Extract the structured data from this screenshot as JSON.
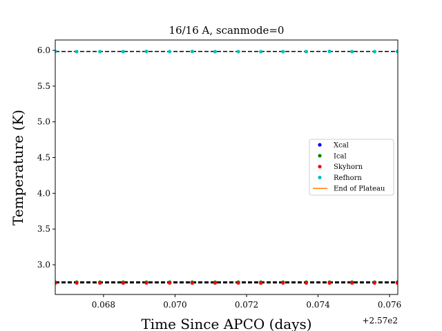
{
  "chart_data": {
    "type": "scatter",
    "title": "16/16 A, scanmode=0",
    "xlabel": "Time Since APCO (days)",
    "ylabel": "Temperature (K)",
    "x_offset_label": "+2.57e2",
    "x_offset": 257,
    "xlim": [
      0.06665,
      0.07623
    ],
    "ylim": [
      2.585,
      6.145
    ],
    "x_ticks": [
      0.068,
      0.07,
      0.072,
      0.074,
      0.076
    ],
    "x_tick_labels": [
      "0.068",
      "0.070",
      "0.072",
      "0.074",
      "0.076"
    ],
    "y_ticks": [
      3.0,
      3.5,
      4.0,
      4.5,
      5.0,
      5.5,
      6.0
    ],
    "y_tick_labels": [
      "3.0",
      "3.5",
      "4.0",
      "4.5",
      "5.0",
      "5.5",
      "6.0"
    ],
    "x": [
      0.06665,
      0.06725,
      0.0679,
      0.06855,
      0.0692,
      0.06985,
      0.07048,
      0.07112,
      0.07177,
      0.0724,
      0.07302,
      0.07367,
      0.07432,
      0.07495,
      0.07558,
      0.07622
    ],
    "series": [
      {
        "name": "Xcal",
        "color": "#0000ff",
        "marker": "dot",
        "values": [
          2.752,
          2.752,
          2.752,
          2.752,
          2.752,
          2.752,
          2.752,
          2.752,
          2.752,
          2.752,
          2.752,
          2.752,
          2.752,
          2.752,
          2.752,
          2.752
        ]
      },
      {
        "name": "Ical",
        "color": "#008000",
        "marker": "dot",
        "values": [
          2.757,
          2.757,
          2.757,
          2.757,
          2.757,
          2.757,
          2.757,
          2.757,
          2.757,
          2.757,
          2.757,
          2.757,
          2.757,
          2.757,
          2.757,
          2.757
        ]
      },
      {
        "name": "Skyhorn",
        "color": "#ff0000",
        "marker": "dot",
        "values": [
          2.745,
          2.746,
          2.746,
          2.745,
          2.746,
          2.746,
          2.745,
          2.746,
          2.746,
          2.745,
          2.746,
          2.746,
          2.745,
          2.746,
          2.746,
          2.745
        ]
      },
      {
        "name": "Refhorn",
        "color": "#00bfbf",
        "marker": "dot",
        "values": [
          5.985,
          5.982,
          5.982,
          5.982,
          5.985,
          5.983,
          5.985,
          5.982,
          5.983,
          5.982,
          5.982,
          5.983,
          5.986,
          5.982,
          5.982,
          5.985
        ]
      },
      {
        "name": "End of Plateau",
        "color": "#ff7f0e",
        "marker": "line",
        "values": []
      }
    ],
    "reference_lines": [
      {
        "y": 5.985,
        "color": "#000000",
        "style": "dashed"
      },
      {
        "y": 2.761,
        "color": "#000000",
        "style": "dashed"
      },
      {
        "y": 2.747,
        "color": "#000000",
        "style": "dashed"
      }
    ],
    "grid": false,
    "legend_position": "right"
  }
}
